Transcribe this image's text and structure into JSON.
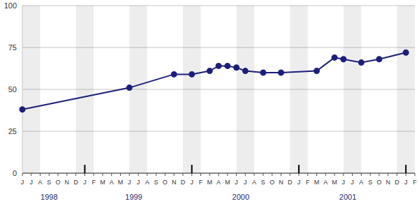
{
  "chart_data": {
    "type": "line",
    "categories": [
      "J",
      "J",
      "A",
      "S",
      "O",
      "N",
      "D",
      "J",
      "F",
      "M",
      "A",
      "M",
      "J",
      "J",
      "A",
      "S",
      "O",
      "N",
      "D",
      "J",
      "F",
      "M",
      "A",
      "M",
      "J",
      "J",
      "A",
      "S",
      "O",
      "N",
      "D",
      "J",
      "F",
      "M",
      "A",
      "M",
      "J",
      "J",
      "A",
      "S",
      "O",
      "N",
      "D",
      "J",
      "F"
    ],
    "year_labels": [
      "1998",
      "1999",
      "2000",
      "2001"
    ],
    "values": [
      38,
      null,
      null,
      null,
      null,
      null,
      null,
      null,
      null,
      null,
      null,
      null,
      51,
      null,
      null,
      null,
      null,
      59,
      null,
      59,
      null,
      61,
      64,
      64,
      63,
      61,
      null,
      60,
      null,
      60,
      null,
      null,
      null,
      61,
      null,
      69,
      68,
      null,
      66,
      null,
      68,
      null,
      null,
      72,
      null
    ],
    "color": "#1c1f7a",
    "marker": "circle",
    "ylim": [
      0,
      100
    ],
    "yticks": [
      0,
      25,
      50,
      75,
      100
    ],
    "grid": true
  }
}
